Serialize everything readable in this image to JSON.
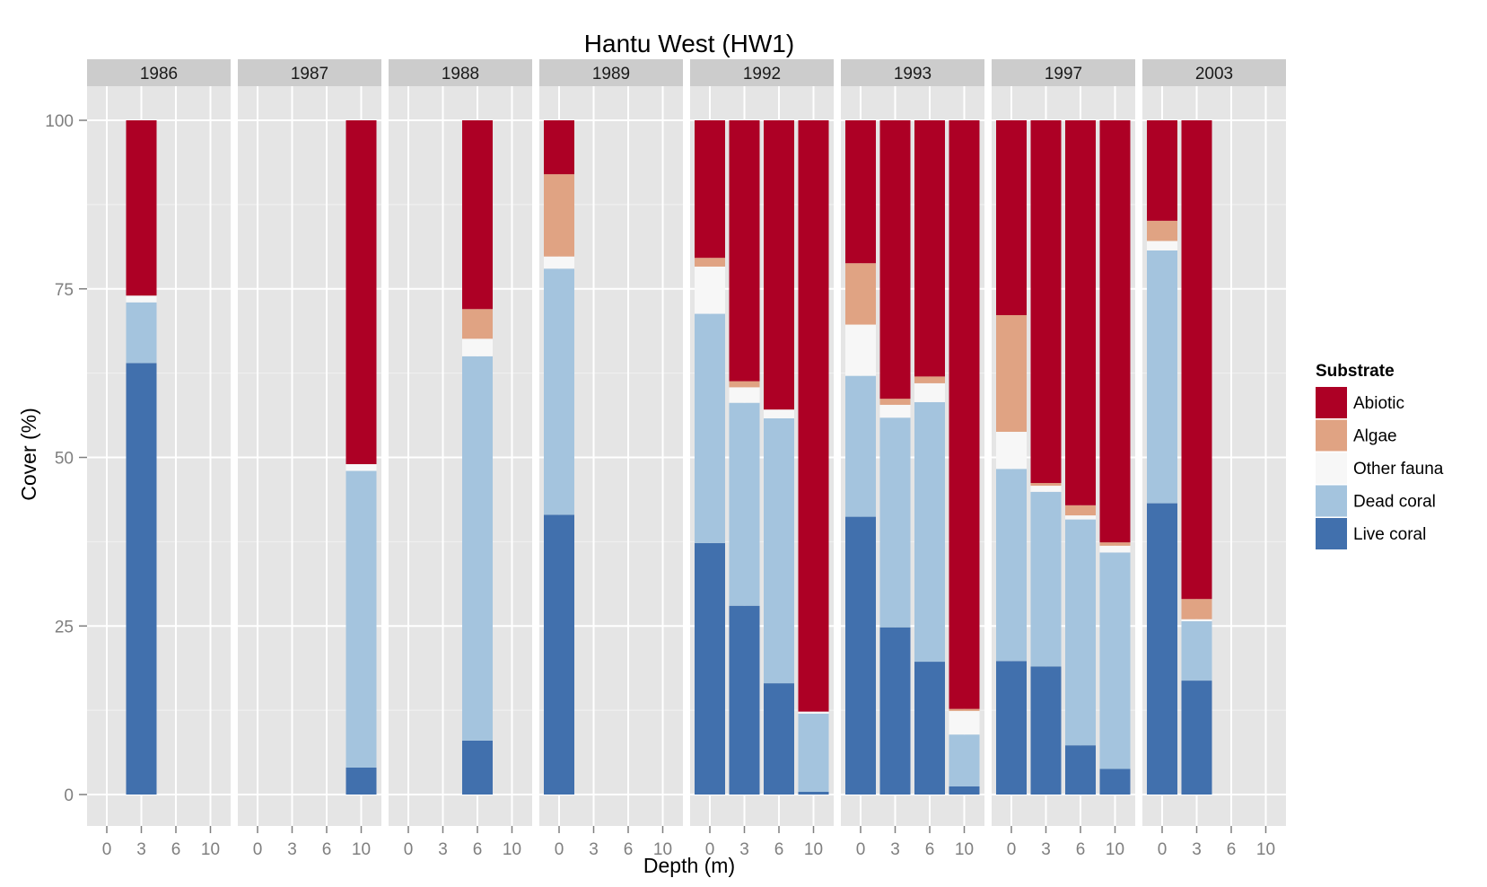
{
  "chart_data": {
    "type": "bar",
    "stacked": true,
    "faceted": true,
    "title": "Hantu West (HW1)",
    "xlabel": "Depth (m)",
    "ylabel": "Cover (%)",
    "ylim": [
      0,
      100
    ],
    "yticks": [
      0,
      25,
      50,
      75,
      100
    ],
    "xticks": [
      "0",
      "3",
      "6",
      "10"
    ],
    "legend": {
      "title": "Substrate",
      "position": "right",
      "entries": [
        "Abiotic",
        "Algae",
        "Other fauna",
        "Dead coral",
        "Live coral"
      ]
    },
    "colors": {
      "Live coral": "#4170ad",
      "Dead coral": "#a4c4de",
      "Other fauna": "#f7f7f7",
      "Algae": "#e0a383",
      "Abiotic": "#ad0025"
    },
    "stack_order_bottom_to_top": [
      "Live coral",
      "Dead coral",
      "Other fauna",
      "Algae",
      "Abiotic"
    ],
    "grid": true,
    "facets": [
      {
        "label": "1986",
        "bars": [
          {
            "depth": "3",
            "Live coral": 64,
            "Dead coral": 9,
            "Other fauna": 1,
            "Algae": 0,
            "Abiotic": 26
          }
        ]
      },
      {
        "label": "1987",
        "bars": [
          {
            "depth": "10",
            "Live coral": 4,
            "Dead coral": 44,
            "Other fauna": 1,
            "Algae": 0,
            "Abiotic": 51
          }
        ]
      },
      {
        "label": "1988",
        "bars": [
          {
            "depth": "6",
            "Live coral": 8,
            "Dead coral": 57,
            "Other fauna": 2.6,
            "Algae": 4.4,
            "Abiotic": 28
          }
        ]
      },
      {
        "label": "1989",
        "bars": [
          {
            "depth": "0",
            "Live coral": 41.5,
            "Dead coral": 36.5,
            "Other fauna": 1.8,
            "Algae": 12.2,
            "Abiotic": 8
          }
        ]
      },
      {
        "label": "1992",
        "bars": [
          {
            "depth": "0",
            "Live coral": 37.3,
            "Dead coral": 34,
            "Other fauna": 7,
            "Algae": 1.3,
            "Abiotic": 20.4
          },
          {
            "depth": "3",
            "Live coral": 28,
            "Dead coral": 30.1,
            "Other fauna": 2.3,
            "Algae": 0.9,
            "Abiotic": 38.7
          },
          {
            "depth": "6",
            "Live coral": 16.5,
            "Dead coral": 39.3,
            "Other fauna": 1.3,
            "Algae": 0,
            "Abiotic": 42.9
          },
          {
            "depth": "10",
            "Live coral": 0.4,
            "Dead coral": 11.6,
            "Other fauna": 0.3,
            "Algae": 0,
            "Abiotic": 87.7
          }
        ]
      },
      {
        "label": "1993",
        "bars": [
          {
            "depth": "0",
            "Live coral": 41.2,
            "Dead coral": 20.9,
            "Other fauna": 7.6,
            "Algae": 9.1,
            "Abiotic": 21.2
          },
          {
            "depth": "3",
            "Live coral": 24.8,
            "Dead coral": 31.1,
            "Other fauna": 1.9,
            "Algae": 0.9,
            "Abiotic": 41.3
          },
          {
            "depth": "6",
            "Live coral": 19.7,
            "Dead coral": 38.5,
            "Other fauna": 2.8,
            "Algae": 1,
            "Abiotic": 38
          },
          {
            "depth": "10",
            "Live coral": 1.2,
            "Dead coral": 7.7,
            "Other fauna": 3.5,
            "Algae": 0.3,
            "Abiotic": 87.3
          }
        ]
      },
      {
        "label": "1997",
        "bars": [
          {
            "depth": "0",
            "Live coral": 19.8,
            "Dead coral": 28.5,
            "Other fauna": 5.5,
            "Algae": 17.3,
            "Abiotic": 28.9
          },
          {
            "depth": "3",
            "Live coral": 19,
            "Dead coral": 25.9,
            "Other fauna": 0.9,
            "Algae": 0.4,
            "Abiotic": 53.8
          },
          {
            "depth": "6",
            "Live coral": 7.3,
            "Dead coral": 33.5,
            "Other fauna": 0.6,
            "Algae": 1.5,
            "Abiotic": 57.1
          },
          {
            "depth": "10",
            "Live coral": 3.8,
            "Dead coral": 32.1,
            "Other fauna": 1,
            "Algae": 0.5,
            "Abiotic": 62.6
          }
        ]
      },
      {
        "label": "2003",
        "bars": [
          {
            "depth": "0",
            "Live coral": 43.2,
            "Dead coral": 37.5,
            "Other fauna": 1.4,
            "Algae": 3,
            "Abiotic": 14.9
          },
          {
            "depth": "3",
            "Live coral": 16.9,
            "Dead coral": 8.8,
            "Other fauna": 0.3,
            "Algae": 3,
            "Abiotic": 71
          }
        ]
      }
    ]
  }
}
